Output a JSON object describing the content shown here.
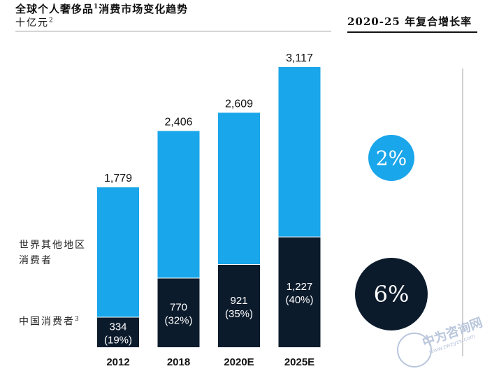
{
  "header": {
    "title": "全球个人奢侈品",
    "title_sup": "1",
    "title_rest": "消费市场变化趋势",
    "unit": "十亿元",
    "unit_sup": "2",
    "cagr_title": "2020-25 年复合增长率"
  },
  "legend": {
    "rest_of_world": "世界其他地区消费者",
    "china": "中国消费者",
    "china_sup": "3"
  },
  "cagr": {
    "rest_of_world": "2%",
    "china": "6%"
  },
  "colors": {
    "rest_of_world": "#1aa6ea",
    "china": "#0c1b2c"
  },
  "chart_data": {
    "type": "bar",
    "stacked": true,
    "categories": [
      "2012",
      "2018",
      "2020E",
      "2025E"
    ],
    "totals": [
      "1,779",
      "2,406",
      "2,609",
      "3,117"
    ],
    "series": [
      {
        "name": "中国消费者",
        "values": [
          334,
          770,
          921,
          1227
        ],
        "labels": [
          "334",
          "770",
          "921",
          "1,227"
        ],
        "shares": [
          "(19%)",
          "(32%)",
          "(35%)",
          "(40%)"
        ]
      },
      {
        "name": "世界其他地区消费者",
        "values": [
          1445,
          1636,
          1688,
          1890
        ]
      }
    ],
    "ylim": [
      0,
      3117
    ],
    "grid": false
  }
}
